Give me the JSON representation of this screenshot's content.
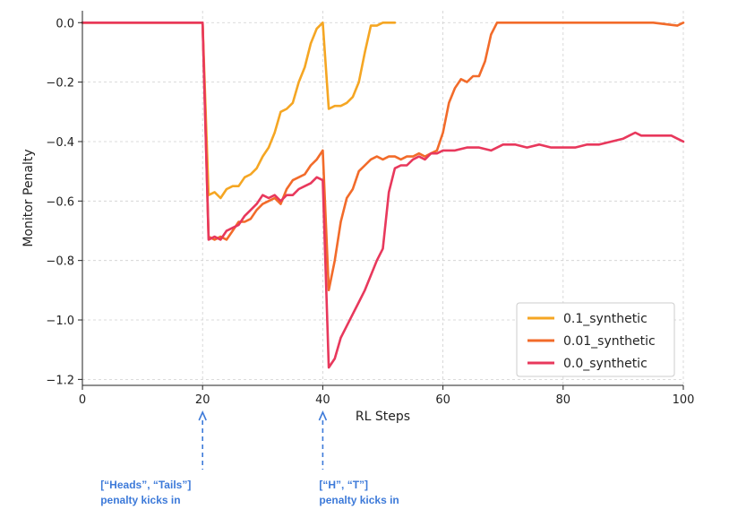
{
  "chart_data": {
    "type": "line",
    "title": "",
    "xlabel": "RL Steps",
    "ylabel": "Monitor Penalty",
    "xlim": [
      0,
      100
    ],
    "ylim": [
      -1.22,
      0.04
    ],
    "x_ticks": [
      "0",
      "20",
      "40",
      "60",
      "80",
      "100"
    ],
    "y_ticks": [
      "0.0",
      "−0.2",
      "−0.4",
      "−0.6",
      "−0.8",
      "−1.0",
      "−1.2"
    ],
    "grid": true,
    "legend_position": "lower-right",
    "series": [
      {
        "name": "0.1_synthetic",
        "color": "#f5a623",
        "points": [
          [
            0,
            0
          ],
          [
            5,
            0
          ],
          [
            10,
            0
          ],
          [
            15,
            0
          ],
          [
            20,
            0
          ],
          [
            21,
            -0.58
          ],
          [
            22,
            -0.57
          ],
          [
            23,
            -0.59
          ],
          [
            24,
            -0.56
          ],
          [
            25,
            -0.55
          ],
          [
            26,
            -0.55
          ],
          [
            27,
            -0.52
          ],
          [
            28,
            -0.51
          ],
          [
            29,
            -0.49
          ],
          [
            30,
            -0.45
          ],
          [
            31,
            -0.42
          ],
          [
            32,
            -0.37
          ],
          [
            33,
            -0.3
          ],
          [
            34,
            -0.29
          ],
          [
            35,
            -0.27
          ],
          [
            36,
            -0.2
          ],
          [
            37,
            -0.15
          ],
          [
            38,
            -0.07
          ],
          [
            39,
            -0.02
          ],
          [
            40,
            0
          ],
          [
            41,
            -0.29
          ],
          [
            42,
            -0.28
          ],
          [
            43,
            -0.28
          ],
          [
            44,
            -0.27
          ],
          [
            45,
            -0.25
          ],
          [
            46,
            -0.2
          ],
          [
            47,
            -0.1
          ],
          [
            48,
            -0.01
          ],
          [
            49,
            -0.01
          ],
          [
            50,
            0
          ],
          [
            51,
            0
          ],
          [
            52,
            0
          ]
        ]
      },
      {
        "name": "0.01_synthetic",
        "color": "#f26b2a",
        "points": [
          [
            0,
            0
          ],
          [
            5,
            0
          ],
          [
            10,
            0
          ],
          [
            15,
            0
          ],
          [
            20,
            0
          ],
          [
            21,
            -0.72
          ],
          [
            22,
            -0.73
          ],
          [
            23,
            -0.72
          ],
          [
            24,
            -0.73
          ],
          [
            25,
            -0.7
          ],
          [
            26,
            -0.67
          ],
          [
            27,
            -0.67
          ],
          [
            28,
            -0.66
          ],
          [
            29,
            -0.63
          ],
          [
            30,
            -0.61
          ],
          [
            31,
            -0.6
          ],
          [
            32,
            -0.59
          ],
          [
            33,
            -0.61
          ],
          [
            34,
            -0.56
          ],
          [
            35,
            -0.53
          ],
          [
            36,
            -0.52
          ],
          [
            37,
            -0.51
          ],
          [
            38,
            -0.48
          ],
          [
            39,
            -0.46
          ],
          [
            40,
            -0.43
          ],
          [
            41,
            -0.9
          ],
          [
            42,
            -0.8
          ],
          [
            43,
            -0.67
          ],
          [
            44,
            -0.59
          ],
          [
            45,
            -0.56
          ],
          [
            46,
            -0.5
          ],
          [
            47,
            -0.48
          ],
          [
            48,
            -0.46
          ],
          [
            49,
            -0.45
          ],
          [
            50,
            -0.46
          ],
          [
            51,
            -0.45
          ],
          [
            52,
            -0.45
          ],
          [
            53,
            -0.46
          ],
          [
            54,
            -0.45
          ],
          [
            55,
            -0.45
          ],
          [
            56,
            -0.44
          ],
          [
            57,
            -0.45
          ],
          [
            58,
            -0.44
          ],
          [
            59,
            -0.43
          ],
          [
            60,
            -0.37
          ],
          [
            61,
            -0.27
          ],
          [
            62,
            -0.22
          ],
          [
            63,
            -0.19
          ],
          [
            64,
            -0.2
          ],
          [
            65,
            -0.18
          ],
          [
            66,
            -0.18
          ],
          [
            67,
            -0.13
          ],
          [
            68,
            -0.04
          ],
          [
            69,
            0
          ],
          [
            70,
            0
          ],
          [
            75,
            0
          ],
          [
            80,
            0
          ],
          [
            85,
            0
          ],
          [
            90,
            0
          ],
          [
            95,
            0
          ],
          [
            99,
            -0.01
          ],
          [
            100,
            0
          ]
        ]
      },
      {
        "name": "0.0_synthetic",
        "color": "#e8385c",
        "points": [
          [
            0,
            0
          ],
          [
            5,
            0
          ],
          [
            10,
            0
          ],
          [
            15,
            0
          ],
          [
            20,
            0
          ],
          [
            21,
            -0.73
          ],
          [
            22,
            -0.72
          ],
          [
            23,
            -0.73
          ],
          [
            24,
            -0.7
          ],
          [
            25,
            -0.69
          ],
          [
            26,
            -0.68
          ],
          [
            27,
            -0.65
          ],
          [
            28,
            -0.63
          ],
          [
            29,
            -0.61
          ],
          [
            30,
            -0.58
          ],
          [
            31,
            -0.59
          ],
          [
            32,
            -0.58
          ],
          [
            33,
            -0.6
          ],
          [
            34,
            -0.58
          ],
          [
            35,
            -0.58
          ],
          [
            36,
            -0.56
          ],
          [
            37,
            -0.55
          ],
          [
            38,
            -0.54
          ],
          [
            39,
            -0.52
          ],
          [
            40,
            -0.53
          ],
          [
            41,
            -1.16
          ],
          [
            42,
            -1.13
          ],
          [
            43,
            -1.06
          ],
          [
            44,
            -1.02
          ],
          [
            45,
            -0.98
          ],
          [
            46,
            -0.94
          ],
          [
            47,
            -0.9
          ],
          [
            48,
            -0.85
          ],
          [
            49,
            -0.8
          ],
          [
            50,
            -0.76
          ],
          [
            51,
            -0.57
          ],
          [
            52,
            -0.49
          ],
          [
            53,
            -0.48
          ],
          [
            54,
            -0.48
          ],
          [
            55,
            -0.46
          ],
          [
            56,
            -0.45
          ],
          [
            57,
            -0.46
          ],
          [
            58,
            -0.44
          ],
          [
            59,
            -0.44
          ],
          [
            60,
            -0.43
          ],
          [
            62,
            -0.43
          ],
          [
            64,
            -0.42
          ],
          [
            66,
            -0.42
          ],
          [
            68,
            -0.43
          ],
          [
            70,
            -0.41
          ],
          [
            72,
            -0.41
          ],
          [
            74,
            -0.42
          ],
          [
            76,
            -0.41
          ],
          [
            78,
            -0.42
          ],
          [
            80,
            -0.42
          ],
          [
            82,
            -0.42
          ],
          [
            84,
            -0.41
          ],
          [
            86,
            -0.41
          ],
          [
            88,
            -0.4
          ],
          [
            90,
            -0.39
          ],
          [
            91,
            -0.38
          ],
          [
            92,
            -0.37
          ],
          [
            93,
            -0.38
          ],
          [
            94,
            -0.38
          ],
          [
            95,
            -0.38
          ],
          [
            96,
            -0.38
          ],
          [
            98,
            -0.38
          ],
          [
            99,
            -0.39
          ],
          [
            100,
            -0.4
          ]
        ]
      }
    ]
  },
  "annotations": [
    {
      "x": 20,
      "line1": "[“Heads”, “Tails”]",
      "line2": "penalty kicks in",
      "color": "#3d7ad9"
    },
    {
      "x": 40,
      "line1": "[“H”, “T”]",
      "line2": "penalty kicks in",
      "color": "#3d7ad9"
    }
  ]
}
